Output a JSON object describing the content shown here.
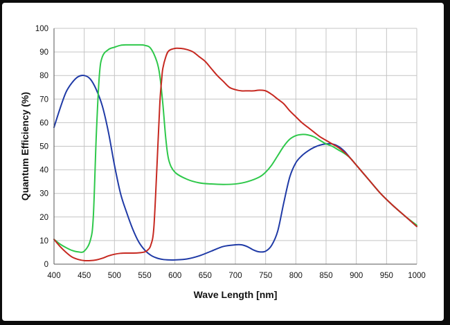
{
  "chart_data": {
    "type": "line",
    "xlabel": "Wave Length [nm]",
    "ylabel": "Quantum Efficiency  (%)",
    "xlim": [
      400,
      1000
    ],
    "ylim": [
      0,
      100
    ],
    "x_ticks": [
      "400",
      "450",
      "500",
      "550",
      "600",
      "650",
      "700",
      "750",
      "800",
      "850",
      "900",
      "950",
      "1000"
    ],
    "y_ticks": [
      "0",
      "10",
      "20",
      "30",
      "40",
      "50",
      "60",
      "70",
      "80",
      "90",
      "100"
    ],
    "grid": true,
    "series": [
      {
        "name": "blue",
        "color": "#1f3aa6",
        "x": [
          400,
          410,
          420,
          430,
          440,
          450,
          460,
          470,
          480,
          490,
          500,
          510,
          520,
          530,
          540,
          550,
          560,
          570,
          580,
          590,
          600,
          620,
          640,
          660,
          680,
          700,
          710,
          720,
          730,
          740,
          750,
          760,
          770,
          780,
          790,
          800,
          810,
          820,
          830,
          840,
          850,
          860,
          870,
          880,
          890,
          900,
          920,
          940,
          960,
          980,
          1000
        ],
        "y": [
          58,
          66,
          73,
          77,
          79.5,
          80,
          78.5,
          74,
          67,
          56,
          42,
          30,
          22,
          15,
          9.5,
          6,
          3.8,
          2.6,
          2,
          1.8,
          1.8,
          2.2,
          3.5,
          5.5,
          7.5,
          8.2,
          8.2,
          7.4,
          6,
          5.2,
          5.5,
          8,
          14,
          26,
          37,
          43,
          46,
          48,
          49.5,
          50.5,
          51,
          51,
          50,
          48,
          45,
          42,
          36,
          30,
          25,
          20.5,
          16
        ]
      },
      {
        "name": "green",
        "color": "#2ec84a",
        "x": [
          400,
          410,
          420,
          430,
          440,
          450,
          460,
          465,
          470,
          475,
          480,
          490,
          500,
          510,
          520,
          530,
          540,
          550,
          560,
          570,
          575,
          580,
          585,
          590,
          600,
          620,
          640,
          660,
          680,
          700,
          720,
          740,
          750,
          760,
          770,
          780,
          790,
          800,
          810,
          820,
          830,
          840,
          850,
          860,
          870,
          880,
          890,
          900,
          920,
          940,
          960,
          980,
          1000
        ],
        "y": [
          10.5,
          8.5,
          7,
          5.8,
          5.2,
          5.5,
          10,
          20,
          55,
          80,
          88,
          91,
          92,
          92.8,
          93,
          93,
          93,
          92.8,
          91.5,
          86,
          80,
          68,
          53,
          44,
          39,
          36,
          34.5,
          34,
          33.8,
          34,
          35,
          37,
          39,
          42,
          46,
          50,
          53,
          54.5,
          55,
          54.8,
          54,
          52.5,
          51,
          50,
          48.5,
          47,
          45,
          42,
          36,
          30,
          25,
          20.5,
          16.5
        ]
      },
      {
        "name": "red",
        "color": "#c62820",
        "x": [
          400,
          410,
          420,
          430,
          440,
          450,
          460,
          470,
          480,
          490,
          500,
          510,
          520,
          530,
          540,
          550,
          555,
          560,
          565,
          570,
          575,
          578,
          580,
          585,
          590,
          600,
          610,
          620,
          630,
          640,
          650,
          660,
          670,
          680,
          690,
          700,
          710,
          720,
          730,
          740,
          750,
          760,
          770,
          780,
          790,
          800,
          810,
          820,
          830,
          840,
          850,
          860,
          870,
          880,
          890,
          900,
          920,
          940,
          960,
          980,
          1000
        ],
        "y": [
          10.5,
          7.5,
          5,
          3,
          2,
          1.5,
          1.5,
          1.8,
          2.5,
          3.5,
          4.2,
          4.6,
          4.7,
          4.7,
          4.8,
          5.2,
          6,
          8,
          15,
          40,
          68,
          78,
          83,
          88,
          90.5,
          91.5,
          91.5,
          91,
          90,
          88,
          86,
          83,
          80,
          77.5,
          75,
          74,
          73.5,
          73.5,
          73.5,
          73.8,
          73.5,
          72,
          70,
          68,
          65,
          62.5,
          60,
          58,
          56,
          54,
          52.5,
          51,
          49.5,
          47.5,
          45,
          42,
          36,
          30,
          25,
          20.5,
          16
        ]
      }
    ]
  }
}
